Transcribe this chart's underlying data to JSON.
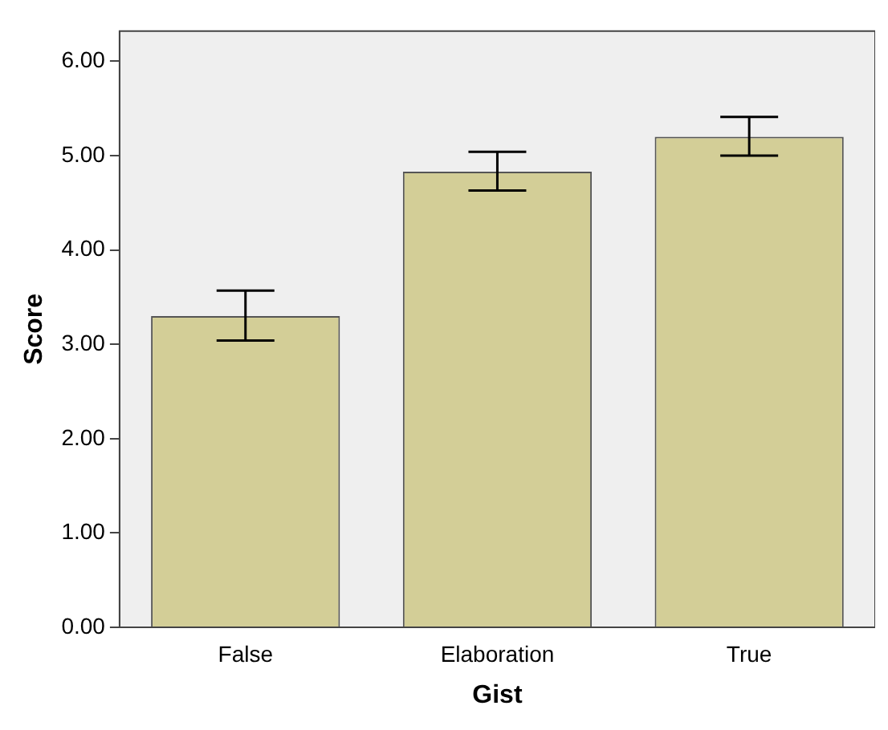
{
  "chart_data": {
    "type": "bar",
    "xlabel": "Gist",
    "ylabel": "Score",
    "categories": [
      "False",
      "Elaboration",
      "True"
    ],
    "values": [
      3.3,
      4.83,
      5.2
    ],
    "errors": [
      [
        3.04,
        3.57
      ],
      [
        4.63,
        5.04
      ],
      [
        5.0,
        5.41
      ]
    ],
    "color": "#d3ce97",
    "ylim": [
      0,
      6.32
    ],
    "yticks": [
      {
        "value": 0,
        "label": "0.00"
      },
      {
        "value": 1,
        "label": "1.00"
      },
      {
        "value": 2,
        "label": "2.00"
      },
      {
        "value": 3,
        "label": "3.00"
      },
      {
        "value": 4,
        "label": "4.00"
      },
      {
        "value": 5,
        "label": "5.00"
      },
      {
        "value": 6,
        "label": "6.00"
      }
    ],
    "grid": false,
    "legend": false
  }
}
